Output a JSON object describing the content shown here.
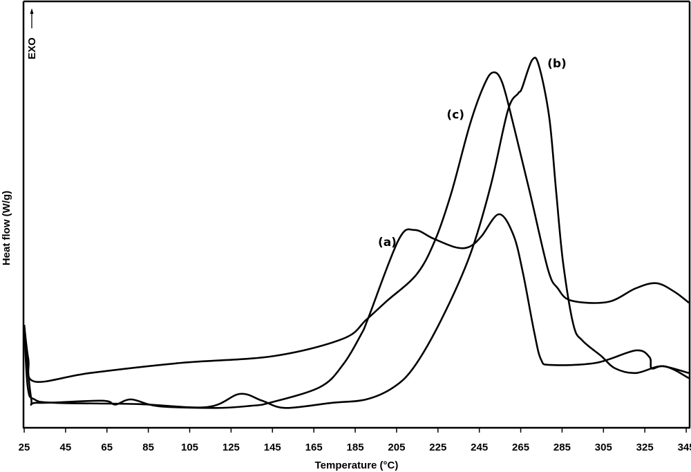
{
  "chart_data": {
    "type": "line",
    "title": "",
    "xlabel": "Temperature (°C)",
    "ylabel": "Heat flow (W/g)",
    "exo_label": "EXO",
    "xlim": [
      25,
      348
    ],
    "ylim": [
      0,
      100
    ],
    "y_units": "arbitrary (no tick values shown)",
    "grid": false,
    "xticks": [
      25,
      45,
      65,
      85,
      105,
      125,
      145,
      165,
      185,
      205,
      225,
      245,
      265,
      285,
      305,
      325,
      345
    ],
    "colors": {
      "line": "#000000"
    },
    "series": [
      {
        "name": "(a)",
        "points": [
          [
            25,
            24
          ],
          [
            28.3,
            7.0
          ],
          [
            31.7,
            5.7
          ],
          [
            62.4,
            6.2
          ],
          [
            69,
            5.3
          ],
          [
            76.8,
            6.5
          ],
          [
            90,
            4.9
          ],
          [
            118,
            4.5
          ],
          [
            134.6,
            5.0
          ],
          [
            143.6,
            5.7
          ],
          [
            168,
            9.4
          ],
          [
            179.3,
            14.8
          ],
          [
            188,
            21.9
          ],
          [
            191.3,
            25.6
          ],
          [
            206,
            44.0
          ],
          [
            213.7,
            46.3
          ],
          [
            222.7,
            44.3
          ],
          [
            233.7,
            42.2
          ],
          [
            240.4,
            42.4
          ],
          [
            246,
            44.8
          ],
          [
            254.5,
            50.0
          ],
          [
            261.5,
            45.1
          ],
          [
            266.2,
            35.9
          ],
          [
            271.5,
            22.4
          ],
          [
            274.8,
            15.9
          ],
          [
            279.5,
            14.6
          ],
          [
            301.5,
            15.1
          ],
          [
            320.6,
            18.0
          ],
          [
            327.3,
            16.4
          ],
          [
            328.3,
            13.8
          ],
          [
            334,
            14.3
          ],
          [
            346.3,
            12.7
          ]
        ]
      },
      {
        "name": "(b)",
        "points": [
          [
            25,
            24
          ],
          [
            26.7,
            9.4
          ],
          [
            30,
            6.5
          ],
          [
            40,
            5.7
          ],
          [
            80,
            5.4
          ],
          [
            113.5,
            4.7
          ],
          [
            129.2,
            7.8
          ],
          [
            140,
            6.2
          ],
          [
            151.3,
            4.5
          ],
          [
            173.6,
            5.7
          ],
          [
            190.3,
            6.5
          ],
          [
            203.7,
            9.4
          ],
          [
            213.7,
            14.3
          ],
          [
            227,
            25.6
          ],
          [
            240.4,
            40.3
          ],
          [
            250.4,
            56.5
          ],
          [
            258.8,
            74.4
          ],
          [
            263.8,
            78.4
          ],
          [
            265.5,
            79.5
          ],
          [
            270.5,
            86.2
          ],
          [
            273.8,
            84.9
          ],
          [
            278.8,
            72.7
          ],
          [
            282.2,
            54.9
          ],
          [
            285.5,
            38.6
          ],
          [
            290.5,
            24.0
          ],
          [
            294.9,
            20.3
          ],
          [
            303.9,
            16.7
          ],
          [
            310.6,
            13.8
          ],
          [
            320.6,
            12.7
          ],
          [
            334,
            14.3
          ],
          [
            346.3,
            11.5
          ]
        ]
      },
      {
        "name": "(c)",
        "points": [
          [
            25,
            24
          ],
          [
            27,
            16
          ],
          [
            30,
            10.7
          ],
          [
            56.7,
            12.7
          ],
          [
            101.2,
            15.1
          ],
          [
            145.9,
            16.7
          ],
          [
            179.3,
            20.8
          ],
          [
            190.3,
            25.2
          ],
          [
            200,
            29.5
          ],
          [
            214.7,
            35.9
          ],
          [
            223.7,
            44.0
          ],
          [
            231.4,
            54.9
          ],
          [
            240.4,
            71.0
          ],
          [
            247,
            80.0
          ],
          [
            251.5,
            83.3
          ],
          [
            256,
            81.0
          ],
          [
            262,
            70.0
          ],
          [
            269.5,
            55.0
          ],
          [
            278.2,
            37.0
          ],
          [
            282.9,
            32.6
          ],
          [
            289.5,
            29.7
          ],
          [
            307.2,
            29.4
          ],
          [
            320.6,
            32.6
          ],
          [
            330.6,
            33.8
          ],
          [
            339.6,
            31.7
          ],
          [
            346.3,
            29.2
          ]
        ]
      }
    ],
    "annotations": [
      {
        "text": "(a)",
        "x": 200.5,
        "y": 42.5
      },
      {
        "text": "(b)",
        "x": 282.5,
        "y": 84.5
      },
      {
        "text": "(c)",
        "x": 233.5,
        "y": 72.5
      }
    ]
  }
}
